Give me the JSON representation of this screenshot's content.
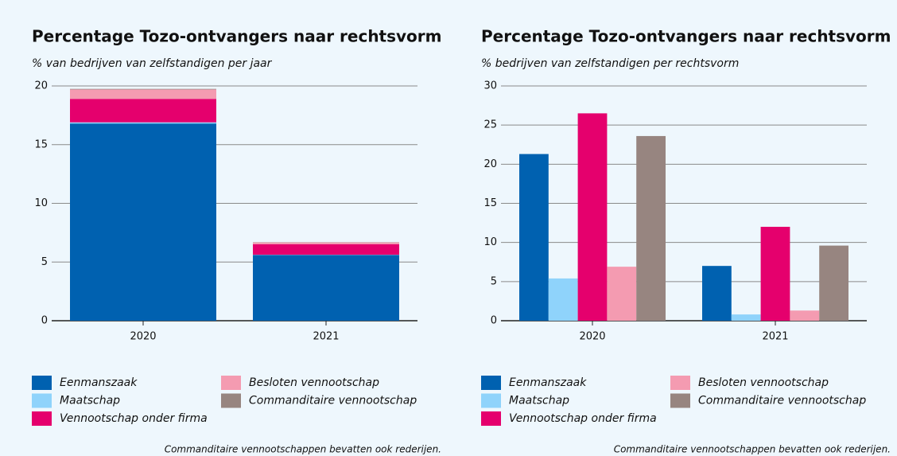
{
  "chart_data": [
    {
      "type": "bar",
      "stacked": true,
      "title": "Percentage Tozo-ontvangers naar rechtsvorm",
      "subtitle": "% van bedrijven van zelfstandigen per jaar",
      "note": "Commanditaire vennootschappen bevatten ook rederijen.",
      "categories": [
        "2020",
        "2021"
      ],
      "series": [
        {
          "name": "Eenmanszaak",
          "color": "#0061b0",
          "values": [
            16.8,
            5.6
          ]
        },
        {
          "name": "Maatschap",
          "color": "#8fd3fb",
          "values": [
            0.1,
            0.02
          ]
        },
        {
          "name": "Vennootschap onder firma",
          "color": "#e5006d",
          "values": [
            2.0,
            0.9
          ]
        },
        {
          "name": "Besloten vennootschap",
          "color": "#f49bb1",
          "values": [
            0.8,
            0.15
          ]
        },
        {
          "name": "Commanditaire vennootschap",
          "color": "#978580",
          "values": [
            0.05,
            0.02
          ]
        }
      ],
      "ylim": [
        0,
        20
      ],
      "yticks": [
        0,
        5,
        10,
        15,
        20
      ],
      "grid": true
    },
    {
      "type": "bar",
      "stacked": false,
      "title": "Percentage Tozo-ontvangers naar rechtsvorm",
      "subtitle": "% bedrijven van zelfstandigen per rechtsvorm",
      "note": "Commanditaire vennootschappen bevatten ook rederijen.",
      "categories": [
        "2020",
        "2021"
      ],
      "series": [
        {
          "name": "Eenmanszaak",
          "color": "#0061b0",
          "values": [
            21.3,
            7.0
          ]
        },
        {
          "name": "Maatschap",
          "color": "#8fd3fb",
          "values": [
            5.4,
            0.8
          ]
        },
        {
          "name": "Vennootschap onder firma",
          "color": "#e5006d",
          "values": [
            26.5,
            12.0
          ]
        },
        {
          "name": "Besloten vennootschap",
          "color": "#f49bb1",
          "values": [
            6.9,
            1.3
          ]
        },
        {
          "name": "Commanditaire vennootschap",
          "color": "#978580",
          "values": [
            23.6,
            9.6
          ]
        }
      ],
      "ylim": [
        0,
        30
      ],
      "yticks": [
        0,
        5,
        10,
        15,
        20,
        25,
        30
      ],
      "grid": true
    }
  ]
}
